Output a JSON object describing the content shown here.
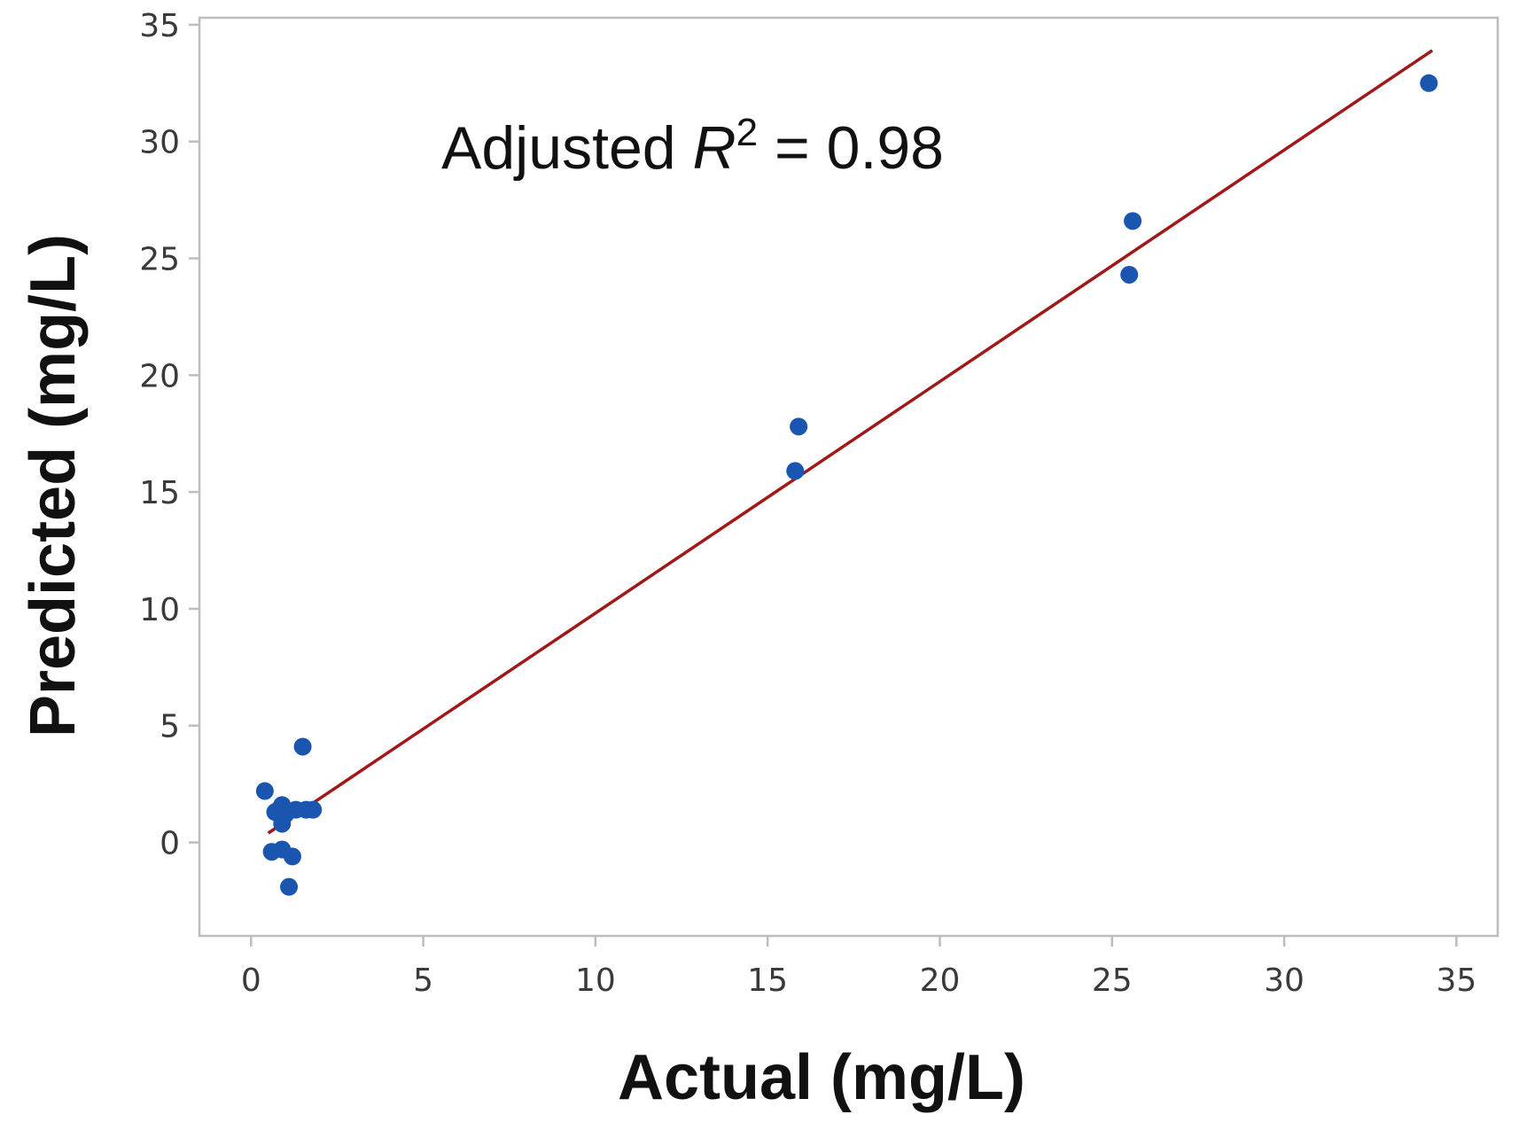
{
  "chart_data": {
    "type": "scatter",
    "xlabel": "Actual (mg/L)",
    "ylabel": "Predicted (mg/L)",
    "xlim": [
      -1.5,
      36.2
    ],
    "ylim": [
      -4,
      35.3
    ],
    "x_ticks": [
      0,
      5,
      10,
      15,
      20,
      25,
      30,
      35
    ],
    "y_ticks": [
      0,
      5,
      10,
      15,
      20,
      25,
      30,
      35
    ],
    "annotation": {
      "prefix": "Adjusted ",
      "symbol": "R",
      "superscript": "2",
      "suffix": " = 0.98"
    },
    "colors": {
      "points": "#1a56b0",
      "fit_line": "#a01818",
      "frame": "#bdbdbd"
    },
    "points": [
      {
        "x": 0.4,
        "y": 2.2
      },
      {
        "x": 0.6,
        "y": -0.4
      },
      {
        "x": 0.7,
        "y": 1.3
      },
      {
        "x": 0.8,
        "y": 1.4
      },
      {
        "x": 0.9,
        "y": 1.6
      },
      {
        "x": 0.9,
        "y": 0.8
      },
      {
        "x": 0.9,
        "y": -0.3
      },
      {
        "x": 1.0,
        "y": 1.2
      },
      {
        "x": 1.1,
        "y": -1.9
      },
      {
        "x": 1.2,
        "y": -0.6
      },
      {
        "x": 1.3,
        "y": 1.4
      },
      {
        "x": 1.5,
        "y": 4.1
      },
      {
        "x": 1.6,
        "y": 1.4
      },
      {
        "x": 1.8,
        "y": 1.4
      },
      {
        "x": 15.8,
        "y": 15.9
      },
      {
        "x": 15.9,
        "y": 17.8
      },
      {
        "x": 25.5,
        "y": 24.3
      },
      {
        "x": 25.6,
        "y": 26.6
      },
      {
        "x": 34.2,
        "y": 32.5
      }
    ],
    "fit_line": {
      "x": [
        0.5,
        34.3
      ],
      "y": [
        0.4,
        33.9
      ]
    }
  }
}
